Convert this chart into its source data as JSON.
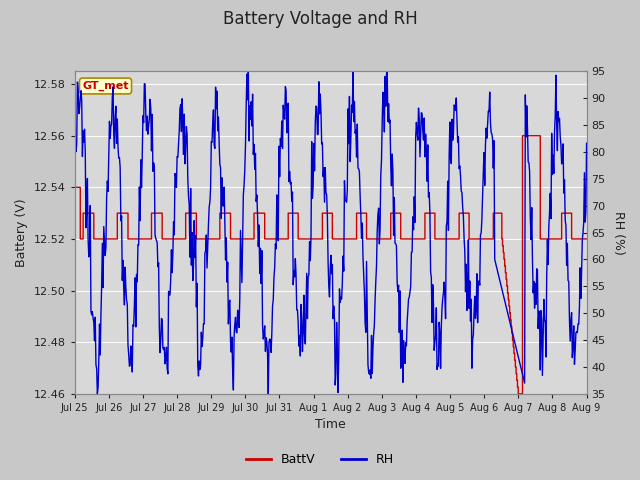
{
  "title": "Battery Voltage and RH",
  "xlabel": "Time",
  "ylabel_left": "Battery (V)",
  "ylabel_right": "RH (%)",
  "label_box": "GT_met",
  "ylim_left": [
    12.46,
    12.585
  ],
  "ylim_right": [
    35,
    95
  ],
  "yticks_left": [
    12.46,
    12.48,
    12.5,
    12.52,
    12.54,
    12.56,
    12.58
  ],
  "yticks_right": [
    35,
    40,
    45,
    50,
    55,
    60,
    65,
    70,
    75,
    80,
    85,
    90,
    95
  ],
  "xtick_labels": [
    "Jul 25",
    "Jul 26",
    "Jul 27",
    "Jul 28",
    "Jul 29",
    "Jul 30",
    "Jul 31",
    "Aug 1",
    "Aug 2",
    "Aug 3",
    "Aug 4",
    "Aug 5",
    "Aug 6",
    "Aug 7",
    "Aug 8",
    "Aug 9"
  ],
  "fig_bg_color": "#c8c8c8",
  "plot_bg_color": "#d8d8d8",
  "batt_color": "#cc0000",
  "rh_color": "#0000cc",
  "legend_batt": "BattV",
  "legend_rh": "RH",
  "title_fontsize": 12,
  "axis_fontsize": 9,
  "tick_fontsize": 8,
  "legend_fontsize": 9,
  "grid_color": "#bbbbbb"
}
